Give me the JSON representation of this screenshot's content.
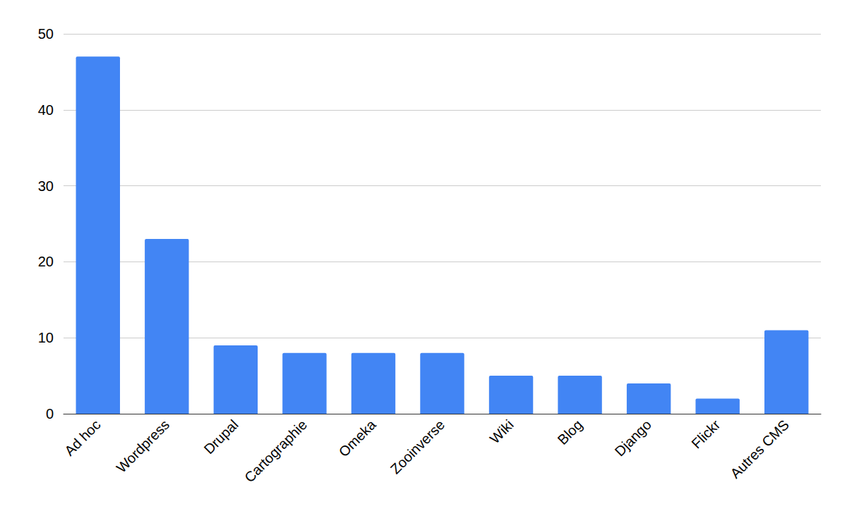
{
  "chart_data": {
    "type": "bar",
    "categories": [
      "Ad hoc",
      "Wordpress",
      "Drupal",
      "Cartographie",
      "Omeka",
      "Zooinverse",
      "Wiki",
      "Blog",
      "Django",
      "Flickr",
      "Autres CMS"
    ],
    "values": [
      47,
      23,
      9,
      8,
      8,
      8,
      5,
      5,
      4,
      2,
      11
    ],
    "color": "#4285f4",
    "ylim": [
      0,
      50
    ],
    "yticks": [
      0,
      10,
      20,
      30,
      40,
      50
    ],
    "grid": true
  }
}
